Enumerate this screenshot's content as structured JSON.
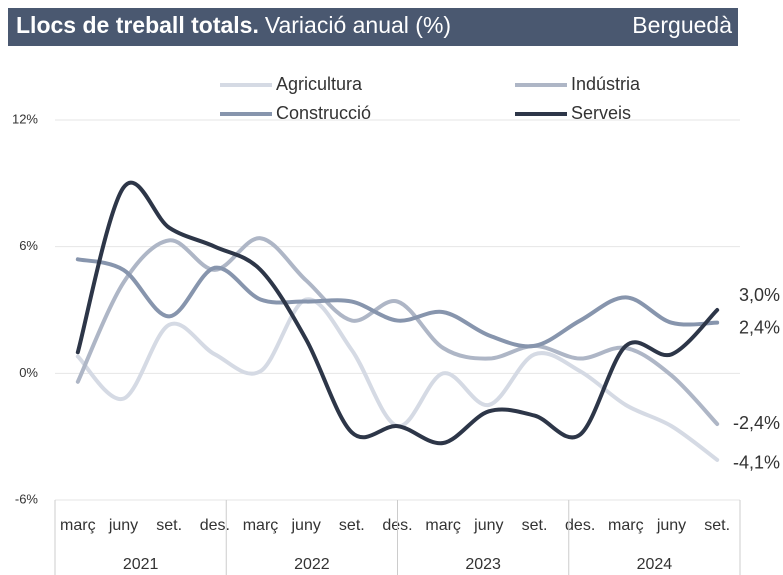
{
  "chart_data": {
    "type": "line",
    "title": "Llocs de treball totals.",
    "subtitle": "Variació anual (%)",
    "region": "Berguedà",
    "categories": [
      "març",
      "juny",
      "set.",
      "des.",
      "març",
      "juny",
      "set.",
      "des.",
      "març",
      "juny",
      "set.",
      "des.",
      "març",
      "juny",
      "set."
    ],
    "year_labels": [
      "2021",
      "2022",
      "2023",
      "2024"
    ],
    "ylim": [
      -6,
      12
    ],
    "yticks": [
      {
        "value": -6,
        "label": "-6%"
      },
      {
        "value": 0,
        "label": "0%"
      },
      {
        "value": 6,
        "label": "6%"
      },
      {
        "value": 12,
        "label": "12%"
      }
    ],
    "grid": true,
    "series": [
      {
        "name": "Agricultura",
        "color": "#d5dae4",
        "values": [
          0.8,
          -1.2,
          2.3,
          0.9,
          0.1,
          3.5,
          1.1,
          -2.5,
          0.0,
          -1.5,
          0.9,
          0.1,
          -1.5,
          -2.5,
          -4.1
        ],
        "value_labels": [
          null,
          null,
          null,
          null,
          null,
          null,
          null,
          null,
          null,
          null,
          null,
          null,
          null,
          null,
          "-4,1%"
        ]
      },
      {
        "name": "Indústria",
        "color": "#aeb6c6",
        "values": [
          -0.4,
          4.3,
          6.3,
          4.9,
          6.4,
          4.4,
          2.5,
          3.4,
          1.2,
          0.7,
          1.3,
          0.7,
          1.2,
          -0.1,
          -2.4
        ],
        "value_labels": [
          null,
          null,
          null,
          null,
          null,
          null,
          null,
          null,
          null,
          null,
          null,
          null,
          null,
          null,
          "-2,4%"
        ]
      },
      {
        "name": "Construcció",
        "color": "#8795ad",
        "values": [
          5.4,
          4.9,
          2.7,
          5.0,
          3.5,
          3.4,
          3.4,
          2.5,
          2.9,
          1.8,
          1.3,
          2.5,
          3.6,
          2.4,
          2.4
        ],
        "value_labels": [
          null,
          null,
          null,
          null,
          null,
          null,
          null,
          null,
          null,
          null,
          null,
          null,
          null,
          null,
          "2,4%"
        ]
      },
      {
        "name": "Serveis",
        "color": "#2d3648",
        "values": [
          1.0,
          8.8,
          6.9,
          6.0,
          4.9,
          1.6,
          -2.8,
          -2.5,
          -3.3,
          -1.8,
          -2.0,
          -2.9,
          1.3,
          0.9,
          3.0
        ],
        "value_labels": [
          null,
          null,
          null,
          null,
          null,
          null,
          null,
          null,
          null,
          null,
          null,
          null,
          null,
          null,
          "3,0%"
        ]
      }
    ]
  }
}
